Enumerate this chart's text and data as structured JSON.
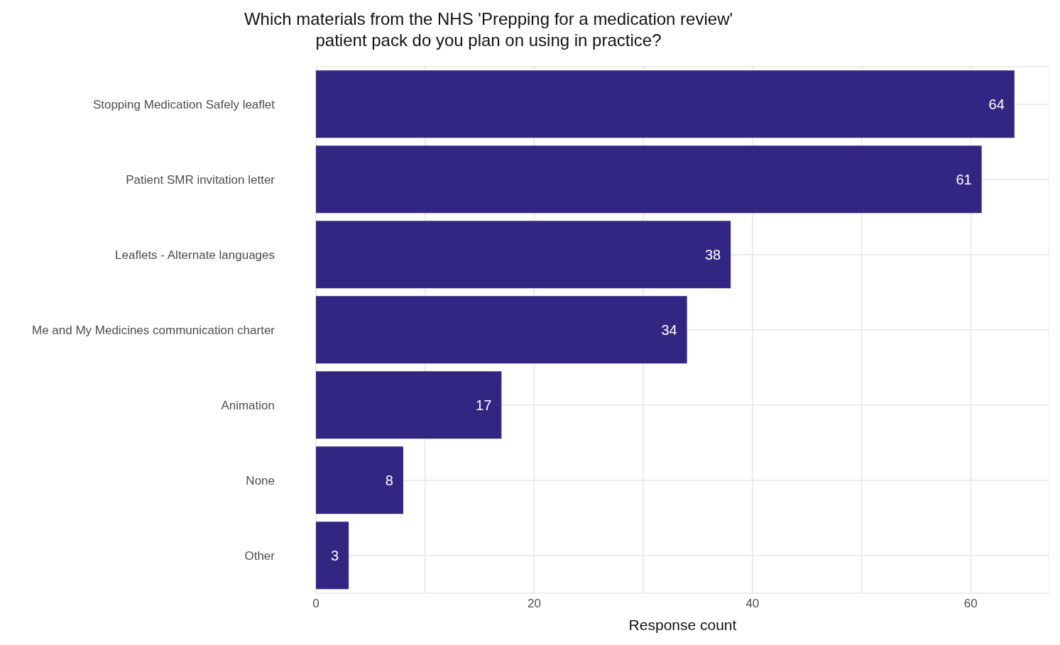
{
  "chart_data": {
    "type": "bar",
    "orientation": "horizontal",
    "title": "Which materials from the NHS 'Prepping for a medication review'\npatient pack do you plan on using in practice?",
    "xlabel": "Response count",
    "categories": [
      "Stopping Medication Safely leaflet",
      "Patient SMR invitation letter",
      "Leaflets - Alternate languages",
      "Me and My Medicines communication charter",
      "Animation",
      "None",
      "Other"
    ],
    "values": [
      64,
      61,
      38,
      34,
      17,
      8,
      3
    ],
    "color": "#312783",
    "data_labels": true,
    "xlim": [
      0,
      67.2
    ],
    "xticks": [
      0,
      {
        "value": 10,
        "label": null
      },
      20,
      {
        "value": 30,
        "label": null
      },
      40,
      {
        "value": 50,
        "label": null
      },
      60
    ],
    "grid": true
  }
}
